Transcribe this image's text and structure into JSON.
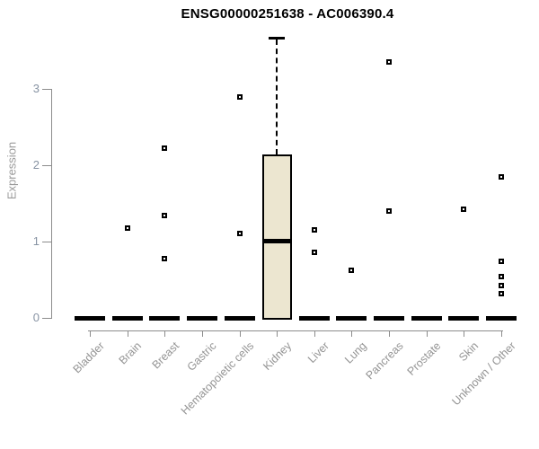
{
  "chart_data": {
    "type": "boxplot",
    "title": "ENSG00000251638 - AC006390.4",
    "ylabel": "Expression",
    "xlabel": "",
    "yticks": [
      0,
      1,
      2,
      3
    ],
    "ylim": [
      0,
      3.7
    ],
    "grid": false,
    "legend": false,
    "categories": [
      "Bladder",
      "Brain",
      "Breast",
      "Gastric",
      "Hematopoietic cells",
      "Kidney",
      "Liver",
      "Lung",
      "Pancreas",
      "Prostate",
      "Skin",
      "Unknown / Other"
    ],
    "series": [
      {
        "label": "Bladder",
        "type": "flat_at_zero",
        "points": []
      },
      {
        "label": "Brain",
        "type": "flat_at_zero",
        "points": [
          1.18
        ]
      },
      {
        "label": "Breast",
        "type": "flat_at_zero",
        "points": [
          2.22,
          1.34,
          0.78
        ]
      },
      {
        "label": "Gastric",
        "type": "flat_at_zero",
        "points": []
      },
      {
        "label": "Hematopoietic cells",
        "type": "flat_at_zero",
        "points": [
          2.89,
          1.11
        ]
      },
      {
        "label": "Kidney",
        "type": "box",
        "box": {
          "q1": 0,
          "median": 1.01,
          "q3": 2.14,
          "upper_whisker": 3.67
        },
        "points": []
      },
      {
        "label": "Liver",
        "type": "flat_at_zero",
        "points": [
          1.15,
          0.86
        ]
      },
      {
        "label": "Lung",
        "type": "flat_at_zero",
        "points": [
          0.62
        ]
      },
      {
        "label": "Pancreas",
        "type": "flat_at_zero",
        "points": [
          3.35,
          1.4
        ]
      },
      {
        "label": "Prostate",
        "type": "flat_at_zero",
        "points": []
      },
      {
        "label": "Skin",
        "type": "flat_at_zero",
        "points": [
          1.42
        ]
      },
      {
        "label": "Unknown / Other",
        "type": "flat_at_zero",
        "points": [
          1.85,
          0.74,
          0.54,
          0.42,
          0.32
        ]
      }
    ],
    "colors": {
      "box_fill": "#ece6d0",
      "box_border": "#000000",
      "flat_bar": "#000000",
      "outlier": "#000000",
      "axis": "#8c8c8c",
      "ytick_label": "#8793a3",
      "xcat_label": "#949494",
      "ylabel": "#9a9a9a",
      "title": "#000000",
      "background": "#ffffff"
    }
  }
}
